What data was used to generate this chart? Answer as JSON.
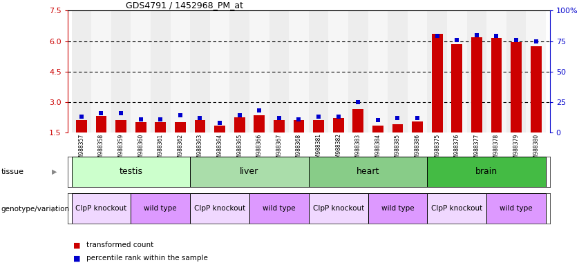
{
  "title": "GDS4791 / 1452968_PM_at",
  "samples": [
    "GSM988357",
    "GSM988358",
    "GSM988359",
    "GSM988360",
    "GSM988361",
    "GSM988362",
    "GSM988363",
    "GSM988364",
    "GSM988365",
    "GSM988366",
    "GSM988367",
    "GSM988368",
    "GSM988381",
    "GSM988382",
    "GSM988383",
    "GSM988384",
    "GSM988385",
    "GSM988386",
    "GSM988375",
    "GSM988376",
    "GSM988377",
    "GSM988378",
    "GSM988379",
    "GSM988380"
  ],
  "red_values": [
    2.1,
    2.3,
    2.1,
    2.0,
    2.0,
    2.0,
    2.1,
    1.85,
    2.25,
    2.35,
    2.1,
    2.1,
    2.1,
    2.2,
    2.65,
    1.85,
    1.9,
    2.05,
    6.35,
    5.85,
    6.2,
    6.15,
    5.95,
    5.75
  ],
  "blue_values": [
    13,
    16,
    16,
    11,
    11,
    14,
    12,
    8,
    14,
    18,
    12,
    11,
    13,
    13,
    25,
    10,
    12,
    12,
    79,
    76,
    80,
    79,
    76,
    75
  ],
  "y_min": 1.5,
  "y_max": 7.5,
  "y_ticks_left": [
    1.5,
    3.0,
    4.5,
    6.0,
    7.5
  ],
  "y_ticks_right": [
    0,
    25,
    50,
    75,
    100
  ],
  "tissues": [
    {
      "label": "testis",
      "start": 0,
      "end": 6,
      "color": "#ccffcc"
    },
    {
      "label": "liver",
      "start": 6,
      "end": 12,
      "color": "#aaddaa"
    },
    {
      "label": "heart",
      "start": 12,
      "end": 18,
      "color": "#88cc88"
    },
    {
      "label": "brain",
      "start": 18,
      "end": 24,
      "color": "#44bb44"
    }
  ],
  "genotypes": [
    {
      "label": "ClpP knockout",
      "start": 0,
      "end": 3,
      "color": "#f0d8ff"
    },
    {
      "label": "wild type",
      "start": 3,
      "end": 6,
      "color": "#dd99ff"
    },
    {
      "label": "ClpP knockout",
      "start": 6,
      "end": 9,
      "color": "#f0d8ff"
    },
    {
      "label": "wild type",
      "start": 9,
      "end": 12,
      "color": "#dd99ff"
    },
    {
      "label": "ClpP knockout",
      "start": 12,
      "end": 15,
      "color": "#f0d8ff"
    },
    {
      "label": "wild type",
      "start": 15,
      "end": 18,
      "color": "#dd99ff"
    },
    {
      "label": "ClpP knockout",
      "start": 18,
      "end": 21,
      "color": "#f0d8ff"
    },
    {
      "label": "wild type",
      "start": 21,
      "end": 24,
      "color": "#dd99ff"
    }
  ],
  "bar_color": "#cc0000",
  "dot_color": "#0000cc",
  "bar_width": 0.55,
  "tissue_label": "tissue",
  "geno_label": "genotype/variation",
  "legend_red": "transformed count",
  "legend_blue": "percentile rank within the sample",
  "tick_bg_even": "#dddddd",
  "tick_bg_odd": "#eeeeee"
}
